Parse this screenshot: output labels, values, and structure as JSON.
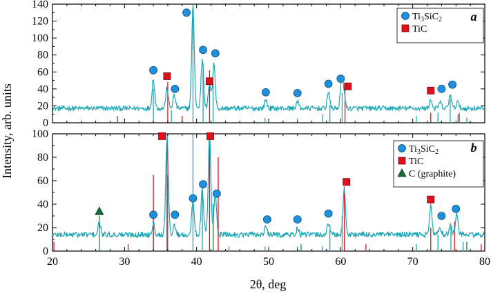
{
  "chart_data": [
    {
      "panel": "a",
      "type": "line",
      "xlabel": "2θ, deg",
      "ylabel": "Intensity, arb. units",
      "xlim": [
        20,
        80
      ],
      "ylim": [
        0,
        140
      ],
      "yticks": [
        0,
        20,
        40,
        60,
        80,
        100,
        120,
        140
      ],
      "ytick_labels": [
        "0",
        "20",
        "40",
        "60",
        "80",
        "100",
        "120",
        "140"
      ],
      "legend": [
        {
          "name": "Ti",
          "sub1": "3",
          "mid": "SiC",
          "sub2": "2",
          "marker": "circle",
          "color": "#1e90dc"
        },
        {
          "name": "TiC",
          "marker": "square",
          "color": "#e0101a"
        }
      ],
      "legend_position": "top-right",
      "baseline": 17,
      "noise_amplitude": 3,
      "series": [
        {
          "color": "#1aa7b5",
          "peaks": [
            [
              34.0,
              35
            ],
            [
              35.9,
              24
            ],
            [
              36.9,
              15
            ],
            [
              39.5,
              120
            ],
            [
              40.8,
              58
            ],
            [
              41.8,
              28
            ],
            [
              42.4,
              54
            ],
            [
              49.6,
              10
            ],
            [
              54.0,
              8
            ],
            [
              58.3,
              19
            ],
            [
              60.1,
              28
            ],
            [
              60.4,
              22
            ],
            [
              72.5,
              10
            ],
            [
              73.8,
              7
            ],
            [
              75.2,
              16
            ],
            [
              76.2,
              8
            ]
          ]
        }
      ],
      "sticks_ti3sic2": [
        [
          34.0,
          40
        ],
        [
          36.5,
          15
        ],
        [
          39.5,
          125
        ],
        [
          40.9,
          70
        ],
        [
          42.3,
          45
        ],
        [
          49.5,
          6
        ],
        [
          54.0,
          5
        ],
        [
          57.5,
          10
        ],
        [
          58.5,
          20
        ],
        [
          60.2,
          35
        ],
        [
          70.5,
          8
        ],
        [
          73.5,
          12
        ],
        [
          75.2,
          28
        ],
        [
          76.5,
          12
        ],
        [
          77.5,
          6
        ]
      ],
      "sticks_tic": [
        [
          29.0,
          8
        ],
        [
          36.0,
          48
        ],
        [
          38.0,
          8
        ],
        [
          41.8,
          62
        ],
        [
          60.6,
          42
        ],
        [
          72.5,
          12
        ],
        [
          76.3,
          10
        ]
      ],
      "markers": [
        {
          "type": "circle",
          "x": 34.0,
          "y": 62
        },
        {
          "type": "circle",
          "x": 37.0,
          "y": 40
        },
        {
          "type": "circle",
          "x": 38.6,
          "y": 130
        },
        {
          "type": "circle",
          "x": 40.9,
          "y": 86
        },
        {
          "type": "circle",
          "x": 42.6,
          "y": 82
        },
        {
          "type": "circle",
          "x": 49.6,
          "y": 36
        },
        {
          "type": "circle",
          "x": 54.0,
          "y": 35
        },
        {
          "type": "circle",
          "x": 58.3,
          "y": 46
        },
        {
          "type": "circle",
          "x": 60.0,
          "y": 52
        },
        {
          "type": "circle",
          "x": 74.0,
          "y": 40
        },
        {
          "type": "circle",
          "x": 75.5,
          "y": 45
        },
        {
          "type": "square",
          "x": 35.9,
          "y": 55
        },
        {
          "type": "square",
          "x": 41.8,
          "y": 49
        },
        {
          "type": "square",
          "x": 61.0,
          "y": 43
        },
        {
          "type": "square",
          "x": 72.5,
          "y": 38
        }
      ]
    },
    {
      "panel": "b",
      "type": "line",
      "xlabel": "2θ, deg",
      "ylabel": "Intensity, arb. units",
      "xlim": [
        20,
        80
      ],
      "ylim": [
        0,
        100
      ],
      "yticks": [
        0,
        20,
        40,
        60,
        80,
        100
      ],
      "ytick_labels": [
        "0",
        "20",
        "40",
        "60",
        "80",
        "100"
      ],
      "xticks": [
        20,
        30,
        40,
        50,
        60,
        70,
        80
      ],
      "xtick_labels": [
        "20",
        "30",
        "40",
        "50",
        "60",
        "70",
        "80"
      ],
      "legend": [
        {
          "name": "Ti",
          "sub1": "3",
          "mid": "SiC",
          "sub2": "2",
          "marker": "circle",
          "color": "#1e90dc"
        },
        {
          "name": "TiC",
          "marker": "square",
          "color": "#e0101a"
        },
        {
          "name": "C (graphite)",
          "marker": "triangle",
          "color": "#1a6b3a"
        }
      ],
      "legend_position": "top-right",
      "baseline": 14,
      "noise_amplitude": 2.5,
      "series": [
        {
          "color": "#1aa7b5",
          "peaks": [
            [
              26.5,
              10
            ],
            [
              34.0,
              10
            ],
            [
              35.9,
              84
            ],
            [
              36.9,
              8
            ],
            [
              39.5,
              28
            ],
            [
              40.8,
              38
            ],
            [
              41.8,
              84
            ],
            [
              42.6,
              35
            ],
            [
              49.6,
              6
            ],
            [
              54.0,
              5
            ],
            [
              58.3,
              10
            ],
            [
              60.5,
              38
            ],
            [
              72.5,
              24
            ],
            [
              73.8,
              6
            ],
            [
              75.2,
              8
            ],
            [
              76.1,
              18
            ]
          ]
        }
      ],
      "sticks_ti3sic2": [
        [
          34.0,
          25
        ],
        [
          36.0,
          65
        ],
        [
          39.5,
          100
        ],
        [
          40.8,
          55
        ],
        [
          42.3,
          40
        ],
        [
          44.5,
          4
        ],
        [
          49.5,
          4
        ],
        [
          54.0,
          4
        ],
        [
          57.5,
          4
        ],
        [
          58.5,
          18
        ],
        [
          60.2,
          30
        ],
        [
          70.5,
          6
        ],
        [
          73.5,
          14
        ],
        [
          75.3,
          22
        ],
        [
          77.0,
          8
        ]
      ],
      "sticks_tic": [
        [
          20.2,
          8
        ],
        [
          30.5,
          6
        ],
        [
          34.0,
          65
        ],
        [
          35.9,
          98
        ],
        [
          41.8,
          98
        ],
        [
          43.0,
          80
        ],
        [
          60.5,
          55
        ],
        [
          63.5,
          6
        ],
        [
          72.5,
          20
        ],
        [
          75.8,
          25
        ],
        [
          79.5,
          6
        ]
      ],
      "sticks_graphite": [
        [
          26.5,
          30
        ],
        [
          42.3,
          25
        ],
        [
          54.5,
          6
        ],
        [
          77.5,
          8
        ]
      ],
      "markers": [
        {
          "type": "circle",
          "x": 34.0,
          "y": 31
        },
        {
          "type": "circle",
          "x": 37.0,
          "y": 31
        },
        {
          "type": "circle",
          "x": 39.5,
          "y": 45
        },
        {
          "type": "circle",
          "x": 40.9,
          "y": 57
        },
        {
          "type": "circle",
          "x": 42.8,
          "y": 49
        },
        {
          "type": "circle",
          "x": 49.8,
          "y": 27
        },
        {
          "type": "circle",
          "x": 54.0,
          "y": 27
        },
        {
          "type": "circle",
          "x": 58.3,
          "y": 32
        },
        {
          "type": "circle",
          "x": 74.0,
          "y": 30
        },
        {
          "type": "circle",
          "x": 76.0,
          "y": 36
        },
        {
          "type": "square",
          "x": 35.2,
          "y": 98
        },
        {
          "type": "square",
          "x": 41.9,
          "y": 98
        },
        {
          "type": "square",
          "x": 60.8,
          "y": 59
        },
        {
          "type": "square",
          "x": 72.5,
          "y": 44
        },
        {
          "type": "triangle",
          "x": 26.5,
          "y": 34
        }
      ]
    }
  ],
  "colors": {
    "pattern": "#1aa7b5",
    "ti3sic2_marker": "#1e90dc",
    "tic_marker": "#e0101a",
    "graphite_marker": "#1a6b3a",
    "ti3sic2_stick": "#1aa7b5",
    "tic_stick": "#e0101a",
    "graphite_stick": "#1a8a3a"
  },
  "labels": {
    "ylabel": "Intensity, arb. units",
    "xlabel": "2θ, deg"
  }
}
